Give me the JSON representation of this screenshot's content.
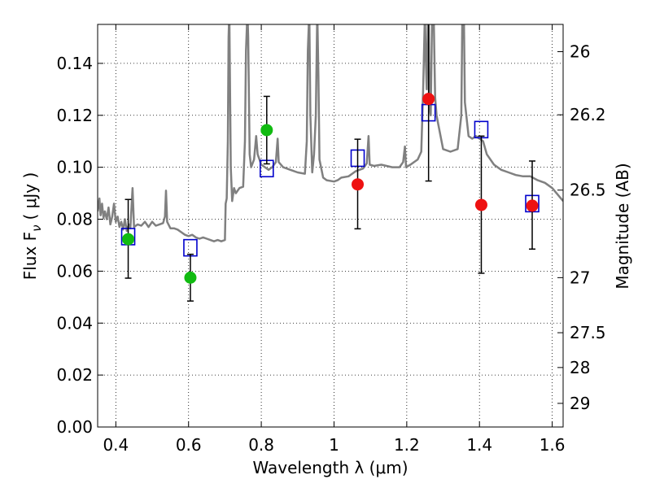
{
  "chart_data": {
    "type": "scatter",
    "xlabel": "Wavelength  λ (μm)",
    "ylabel": "Flux  F",
    "ylabel_sub": "ν",
    "ylabel_unit": "( μJy )",
    "y2label": "Magnitude (AB)",
    "xlim": [
      0.35,
      1.63
    ],
    "ylim": [
      0.0,
      0.155
    ],
    "grid": true,
    "x_ticks": [
      0.4,
      0.6,
      0.8,
      1.0,
      1.2,
      1.4,
      1.6
    ],
    "x_tick_labels": [
      "0.4",
      "0.6",
      "0.8",
      "1",
      "1.2",
      "1.4",
      "1.6"
    ],
    "y_ticks": [
      0.0,
      0.02,
      0.04,
      0.06,
      0.08,
      0.1,
      0.12,
      0.14
    ],
    "y_tick_labels": [
      "0.00",
      "0.02",
      "0.04",
      "0.06",
      "0.08",
      "0.10",
      "0.12",
      "0.14"
    ],
    "y2_ticks": [
      {
        "label": "26",
        "flux": 0.1445
      },
      {
        "label": "26.2",
        "flux": 0.1202
      },
      {
        "label": "26.5",
        "flux": 0.0912
      },
      {
        "label": "27",
        "flux": 0.0575
      },
      {
        "label": "27.5",
        "flux": 0.0363
      },
      {
        "label": "28",
        "flux": 0.0229
      },
      {
        "label": "29",
        "flux": 0.0091
      }
    ],
    "colors": {
      "model": "#808080",
      "model_photometry": "#0000cc",
      "optical_obs": "#11bb11",
      "nir_obs": "#ee1111",
      "errorbar": "#000000"
    },
    "series": [
      {
        "kind": "spectrum",
        "color": "#808080",
        "points": [
          [
            0.35,
            0.083
          ],
          [
            0.355,
            0.088
          ],
          [
            0.358,
            0.0815
          ],
          [
            0.362,
            0.086
          ],
          [
            0.366,
            0.0805
          ],
          [
            0.37,
            0.083
          ],
          [
            0.375,
            0.08
          ],
          [
            0.38,
            0.0845
          ],
          [
            0.385,
            0.078
          ],
          [
            0.39,
            0.081
          ],
          [
            0.395,
            0.086
          ],
          [
            0.4,
            0.079
          ],
          [
            0.405,
            0.081
          ],
          [
            0.41,
            0.077
          ],
          [
            0.415,
            0.079
          ],
          [
            0.42,
            0.076
          ],
          [
            0.425,
            0.08
          ],
          [
            0.43,
            0.0755
          ],
          [
            0.436,
            0.078
          ],
          [
            0.44,
            0.0765
          ],
          [
            0.446,
            0.092
          ],
          [
            0.45,
            0.077
          ],
          [
            0.46,
            0.078
          ],
          [
            0.47,
            0.0775
          ],
          [
            0.48,
            0.079
          ],
          [
            0.49,
            0.077
          ],
          [
            0.5,
            0.079
          ],
          [
            0.51,
            0.0775
          ],
          [
            0.52,
            0.078
          ],
          [
            0.53,
            0.0785
          ],
          [
            0.535,
            0.081
          ],
          [
            0.538,
            0.091
          ],
          [
            0.541,
            0.079
          ],
          [
            0.55,
            0.0765
          ],
          [
            0.56,
            0.0765
          ],
          [
            0.57,
            0.076
          ],
          [
            0.58,
            0.075
          ],
          [
            0.59,
            0.074
          ],
          [
            0.6,
            0.0735
          ],
          [
            0.61,
            0.074
          ],
          [
            0.62,
            0.073
          ],
          [
            0.63,
            0.0725
          ],
          [
            0.64,
            0.073
          ],
          [
            0.65,
            0.0725
          ],
          [
            0.66,
            0.072
          ],
          [
            0.67,
            0.0715
          ],
          [
            0.68,
            0.072
          ],
          [
            0.69,
            0.0715
          ],
          [
            0.7,
            0.072
          ],
          [
            0.702,
            0.086
          ],
          [
            0.705,
            0.088
          ],
          [
            0.708,
            0.11
          ],
          [
            0.71,
            0.15
          ],
          [
            0.712,
            0.16
          ],
          [
            0.714,
            0.13
          ],
          [
            0.716,
            0.1
          ],
          [
            0.72,
            0.087
          ],
          [
            0.725,
            0.092
          ],
          [
            0.73,
            0.09
          ],
          [
            0.74,
            0.092
          ],
          [
            0.75,
            0.0925
          ],
          [
            0.755,
            0.11
          ],
          [
            0.758,
            0.145
          ],
          [
            0.762,
            0.16
          ],
          [
            0.764,
            0.15
          ],
          [
            0.768,
            0.105
          ],
          [
            0.772,
            0.1
          ],
          [
            0.78,
            0.103
          ],
          [
            0.786,
            0.112
          ],
          [
            0.79,
            0.105
          ],
          [
            0.8,
            0.101
          ],
          [
            0.81,
            0.1
          ],
          [
            0.82,
            0.099
          ],
          [
            0.83,
            0.1
          ],
          [
            0.84,
            0.102
          ],
          [
            0.845,
            0.111
          ],
          [
            0.848,
            0.102
          ],
          [
            0.86,
            0.1
          ],
          [
            0.88,
            0.099
          ],
          [
            0.9,
            0.098
          ],
          [
            0.92,
            0.0975
          ],
          [
            0.925,
            0.11
          ],
          [
            0.928,
            0.145
          ],
          [
            0.932,
            0.16
          ],
          [
            0.935,
            0.12
          ],
          [
            0.94,
            0.098
          ],
          [
            0.945,
            0.105
          ],
          [
            0.95,
            0.12
          ],
          [
            0.954,
            0.16
          ],
          [
            0.957,
            0.135
          ],
          [
            0.96,
            0.103
          ],
          [
            0.97,
            0.096
          ],
          [
            0.98,
            0.095
          ],
          [
            1.0,
            0.0945
          ],
          [
            1.01,
            0.095
          ],
          [
            1.02,
            0.096
          ],
          [
            1.04,
            0.0965
          ],
          [
            1.05,
            0.0975
          ],
          [
            1.06,
            0.0985
          ],
          [
            1.08,
            0.0995
          ],
          [
            1.09,
            0.1015
          ],
          [
            1.095,
            0.112
          ],
          [
            1.098,
            0.101
          ],
          [
            1.11,
            0.1005
          ],
          [
            1.13,
            0.101
          ],
          [
            1.16,
            0.1
          ],
          [
            1.18,
            0.1
          ],
          [
            1.19,
            0.102
          ],
          [
            1.195,
            0.108
          ],
          [
            1.198,
            0.1
          ],
          [
            1.21,
            0.101
          ],
          [
            1.23,
            0.103
          ],
          [
            1.24,
            0.106
          ],
          [
            1.245,
            0.13
          ],
          [
            1.25,
            0.16
          ],
          [
            1.252,
            0.143
          ],
          [
            1.255,
            0.13
          ],
          [
            1.258,
            0.155
          ],
          [
            1.26,
            0.16
          ],
          [
            1.263,
            0.123
          ],
          [
            1.266,
            0.12
          ],
          [
            1.27,
            0.16
          ],
          [
            1.274,
            0.16
          ],
          [
            1.278,
            0.127
          ],
          [
            1.282,
            0.12
          ],
          [
            1.286,
            0.117
          ],
          [
            1.3,
            0.107
          ],
          [
            1.32,
            0.106
          ],
          [
            1.34,
            0.107
          ],
          [
            1.35,
            0.12
          ],
          [
            1.353,
            0.16
          ],
          [
            1.357,
            0.16
          ],
          [
            1.36,
            0.125
          ],
          [
            1.37,
            0.112
          ],
          [
            1.38,
            0.111
          ],
          [
            1.39,
            0.112
          ],
          [
            1.4,
            0.111
          ],
          [
            1.41,
            0.11
          ],
          [
            1.42,
            0.105
          ],
          [
            1.44,
            0.101
          ],
          [
            1.46,
            0.099
          ],
          [
            1.48,
            0.098
          ],
          [
            1.5,
            0.097
          ],
          [
            1.52,
            0.0965
          ],
          [
            1.54,
            0.0965
          ],
          [
            1.56,
            0.095
          ],
          [
            1.58,
            0.094
          ],
          [
            1.6,
            0.092
          ],
          [
            1.615,
            0.0895
          ],
          [
            1.63,
            0.087
          ]
        ]
      },
      {
        "kind": "open-squares",
        "color": "#0000cc",
        "points": [
          [
            0.434,
            0.0733
          ],
          [
            0.605,
            0.069
          ],
          [
            0.815,
            0.0995
          ],
          [
            1.065,
            0.1035
          ],
          [
            1.26,
            0.121
          ],
          [
            1.405,
            0.1145
          ],
          [
            1.545,
            0.086
          ]
        ]
      },
      {
        "kind": "filled-circles",
        "color": "#11bb11",
        "points": [
          {
            "x": 0.434,
            "y": 0.0723,
            "yerr_low": 0.0573,
            "yerr_high": 0.0876
          },
          {
            "x": 0.605,
            "y": 0.0575,
            "yerr_low": 0.0485,
            "yerr_high": 0.0665
          },
          {
            "x": 0.815,
            "y": 0.1143,
            "yerr_low": 0.1013,
            "yerr_high": 0.1273
          }
        ]
      },
      {
        "kind": "filled-circles",
        "color": "#ee1111",
        "points": [
          {
            "x": 1.065,
            "y": 0.0934,
            "yerr_low": 0.0763,
            "yerr_high": 0.1108
          },
          {
            "x": 1.26,
            "y": 0.1263,
            "yerr_low": 0.0947,
            "yerr_high": 0.1617
          },
          {
            "x": 1.405,
            "y": 0.0855,
            "yerr_low": 0.0592,
            "yerr_high": 0.112
          },
          {
            "x": 1.545,
            "y": 0.0852,
            "yerr_low": 0.0685,
            "yerr_high": 0.1024
          }
        ]
      }
    ]
  }
}
